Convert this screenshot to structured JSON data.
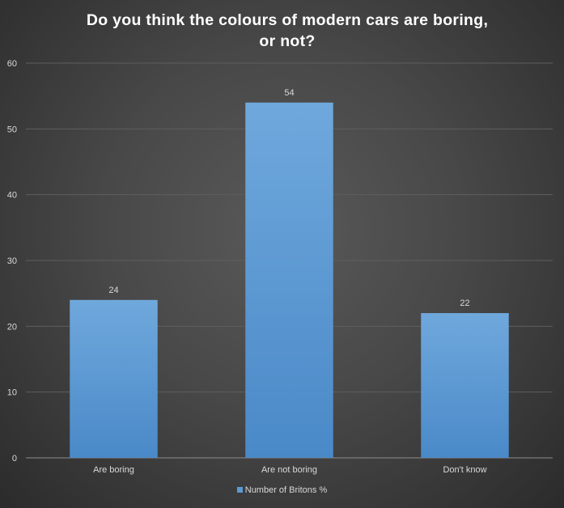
{
  "chart_data": {
    "type": "bar",
    "title": "Do you think the colours of modern cars are boring, or not?",
    "title_lines": [
      "Do you think the colours of modern cars are boring,",
      "or not?"
    ],
    "categories": [
      "Are boring",
      "Are not boring",
      "Don't know"
    ],
    "series": [
      {
        "name": "Number of Britons %",
        "values": [
          24,
          54,
          22
        ],
        "color": "#5b9bd5"
      }
    ],
    "ylim": [
      0,
      60
    ],
    "yticks": [
      0,
      10,
      20,
      30,
      40,
      50,
      60
    ],
    "grid": true,
    "data_labels": true,
    "legend_position": "bottom"
  },
  "colors": {
    "bar": "#5b9bd5",
    "bar_light": "#6fa8dc",
    "background": "#404040",
    "text": "#d9d9d9"
  }
}
